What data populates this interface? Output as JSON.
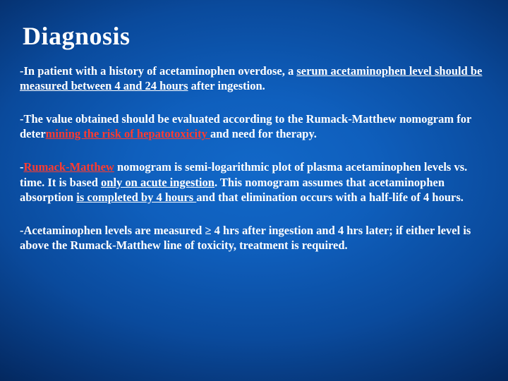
{
  "slide": {
    "background": {
      "gradient_center": "#1268c8",
      "gradient_mid": "#0a4a9c",
      "gradient_edge": "#011a44"
    },
    "title": {
      "text": "Diagnosis",
      "color": "#ffffff",
      "fontsize_pt": 36,
      "weight": "bold"
    },
    "text_color": "#ffffff",
    "body_fontsize_pt": 16.5,
    "red_color": "#ff3b2f",
    "p1": {
      "a": "-In patient with a history of acetaminophen overdose, a ",
      "b": "serum acetaminophen level should be measured between 4 and 24 hours",
      "c": " after ingestion."
    },
    "p2": {
      "a": "-The value obtained should be evaluated according to the Rumack-Matthew nomogram for ",
      "b": "deter",
      "c": "mining the risk of hepatotoxicity ",
      "d": "and need for therapy."
    },
    "p3": {
      "a": "-",
      "b": "Rumack-Matthew",
      "c": " nomogram is semi-logarithmic plot of plasma acetaminophen levels vs. time. It is  based ",
      "d": "only on acute ingestion",
      "e": ". This nomogram assumes that acetaminophen absorption ",
      "f": "is completed by 4 hours ",
      "g": "and that elimination occurs with a half-life of 4 hours."
    },
    "p4": {
      "a": "-Acetaminophen levels are measured ≥ 4 hrs after ingestion and 4 hrs later; if either level is above the Rumack-Matthew line of toxicity, treatment is required."
    }
  }
}
